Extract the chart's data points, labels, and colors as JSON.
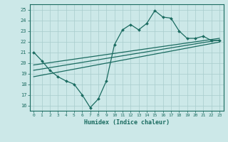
{
  "xlabel": "Humidex (Indice chaleur)",
  "bg_color": "#cce8e8",
  "line_color": "#1a6b60",
  "grid_color": "#a8cccc",
  "xlim": [
    -0.5,
    23.5
  ],
  "ylim": [
    15.5,
    25.5
  ],
  "xticks": [
    0,
    1,
    2,
    3,
    4,
    5,
    6,
    7,
    8,
    9,
    10,
    11,
    12,
    13,
    14,
    15,
    16,
    17,
    18,
    19,
    20,
    21,
    22,
    23
  ],
  "yticks": [
    16,
    17,
    18,
    19,
    20,
    21,
    22,
    23,
    24,
    25
  ],
  "main_x": [
    0,
    1,
    2,
    3,
    4,
    5,
    6,
    7,
    8,
    9,
    10,
    11,
    12,
    13,
    14,
    15,
    16,
    17,
    18,
    19,
    20,
    21,
    22,
    23
  ],
  "main_y": [
    21.0,
    20.2,
    19.3,
    18.7,
    18.3,
    18.0,
    17.0,
    15.8,
    16.6,
    18.3,
    21.7,
    23.1,
    23.6,
    23.1,
    23.7,
    24.9,
    24.3,
    24.2,
    23.0,
    22.3,
    22.3,
    22.5,
    22.1,
    22.1
  ],
  "line1_x": [
    0,
    23
  ],
  "line1_y": [
    19.8,
    22.3
  ],
  "line2_x": [
    0,
    23
  ],
  "line2_y": [
    19.3,
    22.15
  ],
  "line3_x": [
    0,
    23
  ],
  "line3_y": [
    18.7,
    21.95
  ]
}
